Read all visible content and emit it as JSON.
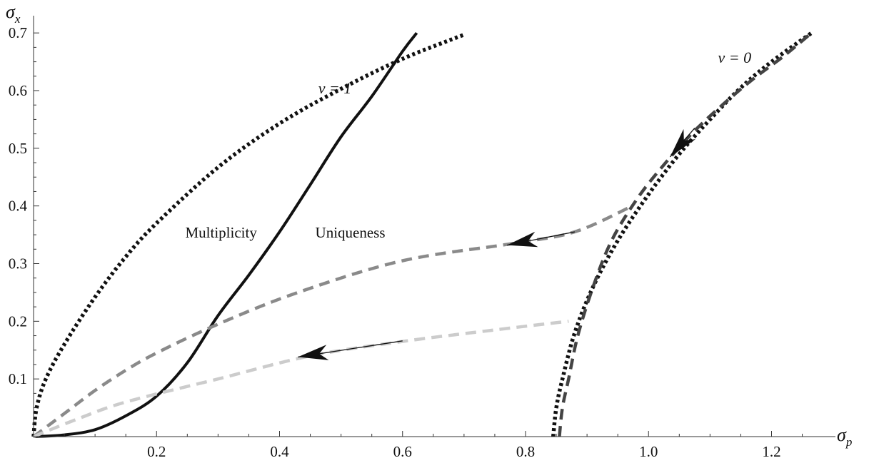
{
  "chart_data": {
    "type": "line",
    "title": "",
    "xlabel": "σ",
    "xlabel_sub": "p",
    "ylabel": "σ",
    "ylabel_sub": "x",
    "xlim": [
      0,
      1.29
    ],
    "ylim": [
      0,
      0.72
    ],
    "x_ticks": [
      0.2,
      0.4,
      0.6,
      0.8,
      1.0,
      1.2
    ],
    "x_tick_labels": [
      "0.2",
      "0.4",
      "0.6",
      "0.8",
      "1.0",
      "1.2"
    ],
    "y_ticks": [
      0.1,
      0.2,
      0.3,
      0.4,
      0.5,
      0.6,
      0.7
    ],
    "y_tick_labels": [
      "0.1",
      "0.2",
      "0.3",
      "0.4",
      "0.5",
      "0.6",
      "0.7"
    ],
    "grid": false,
    "annotations": [
      {
        "text": "ν = 1",
        "x": 0.49,
        "y": 0.595
      },
      {
        "text": "ν = 0",
        "x": 1.14,
        "y": 0.648
      },
      {
        "text": "Multiplicity",
        "x": 0.305,
        "y": 0.345
      },
      {
        "text": "Uniqueness",
        "x": 0.515,
        "y": 0.345
      }
    ],
    "series": [
      {
        "style": "solid",
        "color": "#111111",
        "points": [
          [
            0,
            0
          ],
          [
            0.05,
            0.003
          ],
          [
            0.1,
            0.012
          ],
          [
            0.15,
            0.036
          ],
          [
            0.2,
            0.07
          ],
          [
            0.25,
            0.128
          ],
          [
            0.3,
            0.21
          ],
          [
            0.35,
            0.28
          ],
          [
            0.4,
            0.355
          ],
          [
            0.45,
            0.437
          ],
          [
            0.5,
            0.52
          ],
          [
            0.55,
            0.59
          ],
          [
            0.6,
            0.668
          ],
          [
            0.623,
            0.7
          ]
        ]
      },
      {
        "style": "dotted",
        "color": "#111111",
        "points": [
          [
            0,
            0
          ],
          [
            0.005,
            0.05
          ],
          [
            0.02,
            0.1
          ],
          [
            0.05,
            0.16
          ],
          [
            0.1,
            0.242
          ],
          [
            0.15,
            0.312
          ],
          [
            0.2,
            0.37
          ],
          [
            0.3,
            0.467
          ],
          [
            0.4,
            0.543
          ],
          [
            0.5,
            0.603
          ],
          [
            0.6,
            0.655
          ],
          [
            0.7,
            0.697
          ]
        ]
      },
      {
        "style": "dotted",
        "color": "#111111",
        "points": [
          [
            0.845,
            0
          ],
          [
            0.85,
            0.05
          ],
          [
            0.86,
            0.1
          ],
          [
            0.88,
            0.18
          ],
          [
            0.91,
            0.26
          ],
          [
            0.95,
            0.34
          ],
          [
            1.0,
            0.42
          ],
          [
            1.05,
            0.49
          ],
          [
            1.1,
            0.55
          ],
          [
            1.15,
            0.605
          ],
          [
            1.2,
            0.65
          ],
          [
            1.265,
            0.7
          ]
        ]
      },
      {
        "style": "dashed",
        "color": "#444444",
        "points": [
          [
            0.855,
            0
          ],
          [
            0.86,
            0.05
          ],
          [
            0.87,
            0.1
          ],
          [
            0.885,
            0.175
          ],
          [
            0.91,
            0.26
          ],
          [
            0.94,
            0.34
          ],
          [
            0.98,
            0.41
          ],
          [
            1.02,
            0.465
          ],
          [
            1.07,
            0.525
          ],
          [
            1.12,
            0.575
          ],
          [
            1.17,
            0.62
          ],
          [
            1.22,
            0.66
          ],
          [
            1.265,
            0.7
          ]
        ]
      },
      {
        "style": "dashed",
        "color": "#8a8a8a",
        "points": [
          [
            0,
            0
          ],
          [
            0.05,
            0.04
          ],
          [
            0.1,
            0.08
          ],
          [
            0.15,
            0.115
          ],
          [
            0.2,
            0.145
          ],
          [
            0.3,
            0.195
          ],
          [
            0.43,
            0.25
          ],
          [
            0.6,
            0.305
          ],
          [
            0.78,
            0.335
          ],
          [
            0.88,
            0.355
          ],
          [
            0.97,
            0.398
          ]
        ]
      },
      {
        "style": "dashed",
        "color": "#cccccc",
        "points": [
          [
            0,
            0
          ],
          [
            0.07,
            0.03
          ],
          [
            0.15,
            0.06
          ],
          [
            0.3,
            0.1
          ],
          [
            0.45,
            0.14
          ],
          [
            0.6,
            0.165
          ],
          [
            0.75,
            0.185
          ],
          [
            0.87,
            0.2
          ]
        ]
      }
    ],
    "arrows": [
      {
        "line_from": [
          0.88,
          0.355
        ],
        "tip": [
          0.77,
          0.332
        ]
      },
      {
        "line_from": [
          0.6,
          0.166
        ],
        "tip": [
          0.43,
          0.138
        ]
      },
      {
        "line_from": [
          1.075,
          0.535
        ],
        "tip": [
          1.035,
          0.485
        ]
      }
    ]
  }
}
